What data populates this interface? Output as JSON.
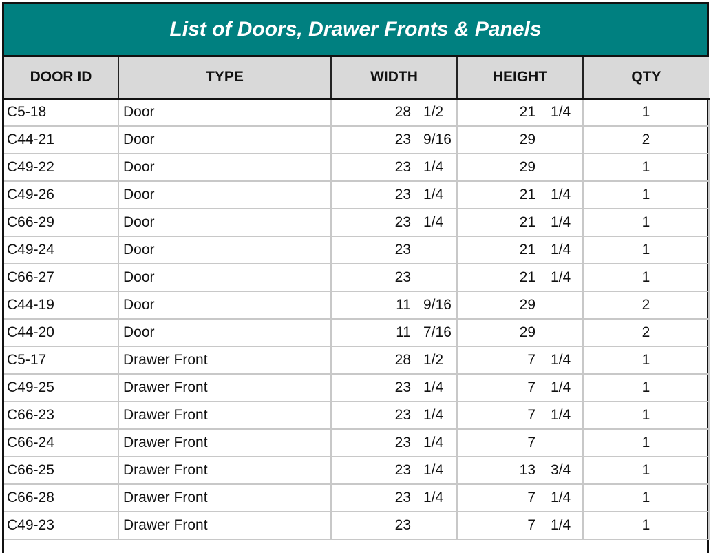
{
  "title": "List of Doors, Drawer Fronts & Panels",
  "colors": {
    "title_bg": "#008080",
    "header_bg": "#d9d9d9"
  },
  "columns": [
    "DOOR ID",
    "TYPE",
    "WIDTH",
    "HEIGHT",
    "QTY"
  ],
  "rows": [
    {
      "id": "C5-18",
      "type": "Door",
      "width": "28",
      "width_frac": "1/2",
      "height": "21",
      "height_frac": "1/4",
      "qty": "1"
    },
    {
      "id": "C44-21",
      "type": "Door",
      "width": "23",
      "width_frac": "9/16",
      "height": "29",
      "height_frac": "",
      "qty": "2"
    },
    {
      "id": "C49-22",
      "type": "Door",
      "width": "23",
      "width_frac": "1/4",
      "height": "29",
      "height_frac": "",
      "qty": "1"
    },
    {
      "id": "C49-26",
      "type": "Door",
      "width": "23",
      "width_frac": "1/4",
      "height": "21",
      "height_frac": "1/4",
      "qty": "1"
    },
    {
      "id": "C66-29",
      "type": "Door",
      "width": "23",
      "width_frac": "1/4",
      "height": "21",
      "height_frac": "1/4",
      "qty": "1"
    },
    {
      "id": "C49-24",
      "type": "Door",
      "width": "23",
      "width_frac": "",
      "height": "21",
      "height_frac": "1/4",
      "qty": "1"
    },
    {
      "id": "C66-27",
      "type": "Door",
      "width": "23",
      "width_frac": "",
      "height": "21",
      "height_frac": "1/4",
      "qty": "1"
    },
    {
      "id": "C44-19",
      "type": "Door",
      "width": "11",
      "width_frac": "9/16",
      "height": "29",
      "height_frac": "",
      "qty": "2"
    },
    {
      "id": "C44-20",
      "type": "Door",
      "width": "11",
      "width_frac": "7/16",
      "height": "29",
      "height_frac": "",
      "qty": "2"
    },
    {
      "id": "C5-17",
      "type": "Drawer Front",
      "width": "28",
      "width_frac": "1/2",
      "height": "7",
      "height_frac": "1/4",
      "qty": "1"
    },
    {
      "id": "C49-25",
      "type": "Drawer Front",
      "width": "23",
      "width_frac": "1/4",
      "height": "7",
      "height_frac": "1/4",
      "qty": "1"
    },
    {
      "id": "C66-23",
      "type": "Drawer Front",
      "width": "23",
      "width_frac": "1/4",
      "height": "7",
      "height_frac": "1/4",
      "qty": "1"
    },
    {
      "id": "C66-24",
      "type": "Drawer Front",
      "width": "23",
      "width_frac": "1/4",
      "height": "7",
      "height_frac": "",
      "qty": "1"
    },
    {
      "id": "C66-25",
      "type": "Drawer Front",
      "width": "23",
      "width_frac": "1/4",
      "height": "13",
      "height_frac": "3/4",
      "qty": "1"
    },
    {
      "id": "C66-28",
      "type": "Drawer Front",
      "width": "23",
      "width_frac": "1/4",
      "height": "7",
      "height_frac": "1/4",
      "qty": "1"
    },
    {
      "id": "C49-23",
      "type": "Drawer Front",
      "width": "23",
      "width_frac": "",
      "height": "7",
      "height_frac": "1/4",
      "qty": "1"
    }
  ]
}
